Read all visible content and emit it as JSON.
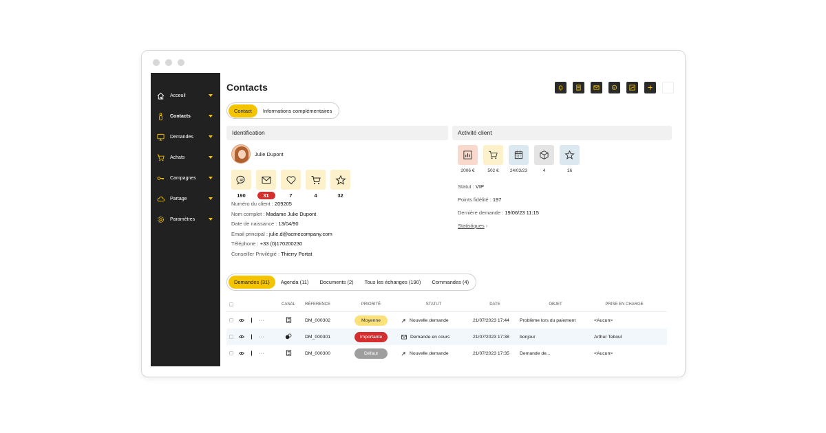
{
  "sidebar": {
    "items": [
      {
        "label": "Acceuil",
        "icon": "home-icon"
      },
      {
        "label": "Contacts",
        "icon": "person-icon"
      },
      {
        "label": "Demandes",
        "icon": "monitor-icon"
      },
      {
        "label": "Achats",
        "icon": "cart-icon"
      },
      {
        "label": "Campagnes",
        "icon": "key-icon"
      },
      {
        "label": "Partage",
        "icon": "cloud-icon"
      },
      {
        "label": "Paramètres",
        "icon": "gear-icon"
      }
    ],
    "active": "Contacts",
    "accent": "#f5c400"
  },
  "header": {
    "title": "Contacts",
    "actions": [
      "bell-icon",
      "calculator-icon",
      "mail-icon",
      "chat-icon",
      "chart-icon",
      "plus-icon"
    ]
  },
  "top_tabs": [
    "Contact",
    "Informations complémentaires"
  ],
  "identification": {
    "heading": "Identification",
    "name": "Julie Dupont",
    "stats": [
      {
        "icon": "chat-icon",
        "value": "190"
      },
      {
        "icon": "mail-icon",
        "value": "31"
      },
      {
        "icon": "heart-icon",
        "value": "7"
      },
      {
        "icon": "cart-icon",
        "value": "4"
      },
      {
        "icon": "star-icon",
        "value": "32"
      }
    ],
    "fields": [
      {
        "label": "Numéro du client : ",
        "value": "209205"
      },
      {
        "label": "Nom complet : ",
        "value": "Madame Julie Dupont"
      },
      {
        "label": "Date de naissance : ",
        "value": "13/04/90"
      },
      {
        "label": "Email principal : ",
        "value": "julie.d@acmecompany.com"
      },
      {
        "label": "Téléphone : ",
        "value": "+33 (0)170200230"
      },
      {
        "label": "Conseiller Privilégié : ",
        "value": "Thierry Portat"
      }
    ]
  },
  "activite": {
    "heading": "Activité client",
    "stats": [
      {
        "icon": "chart-icon",
        "value": "2006 €",
        "color": "#f8d9cc"
      },
      {
        "icon": "cart-icon",
        "value": "502 €",
        "color": "#fdf1cc"
      },
      {
        "icon": "calendar-icon",
        "value": "24/03/23",
        "color": "#dce8f0"
      },
      {
        "icon": "box-icon",
        "value": "4",
        "color": "#e4e4e4"
      },
      {
        "icon": "star-icon",
        "value": "16",
        "color": "#dce8f0"
      }
    ],
    "statut_label": "Statut : ",
    "statut_value": "VIP",
    "points_label": "Points fidélité : ",
    "points_value": "197",
    "derniere_label": "Dernière demande : ",
    "derniere_value": "19/06/23  11:15",
    "statistiques": "Statistiques"
  },
  "bottom_tabs": [
    "Demandes (31)",
    "Agenda (11)",
    "Documents (2)",
    "Tous les échanges (190)",
    "Commandes (4)"
  ],
  "table": {
    "headers": {
      "canal": "CANAL",
      "ref": "RÉFERENCE",
      "prio": "PRIORITÉ",
      "statut": "STATUT",
      "date": "DATE",
      "objet": "OBJET",
      "prise": "PRISE EN CHARGE"
    },
    "rows": [
      {
        "canal": "document-icon",
        "ref": "DM_000302",
        "prio": "Moyenne",
        "statut": "Nouvelle demande",
        "statut_icon": "pin-icon",
        "date": "21/07/2023 17:44",
        "objet": "Problème lors du paiement",
        "prise": "<Aucun>"
      },
      {
        "canal": "chat-icon",
        "ref": "DM_000301",
        "prio": "Importante",
        "statut": "Demande en cours",
        "statut_icon": "mail-icon",
        "date": "21/07/2023 17:38",
        "objet": "bonjour",
        "prise": "Arthur Teboul"
      },
      {
        "canal": "document-icon",
        "ref": "DM_000300",
        "prio": "Défaut",
        "statut": "Nouvelle demande",
        "statut_icon": "pin-icon",
        "date": "21/07/2023 17:35",
        "objet": "Demande de...",
        "prise": "<Aucun>"
      }
    ]
  }
}
